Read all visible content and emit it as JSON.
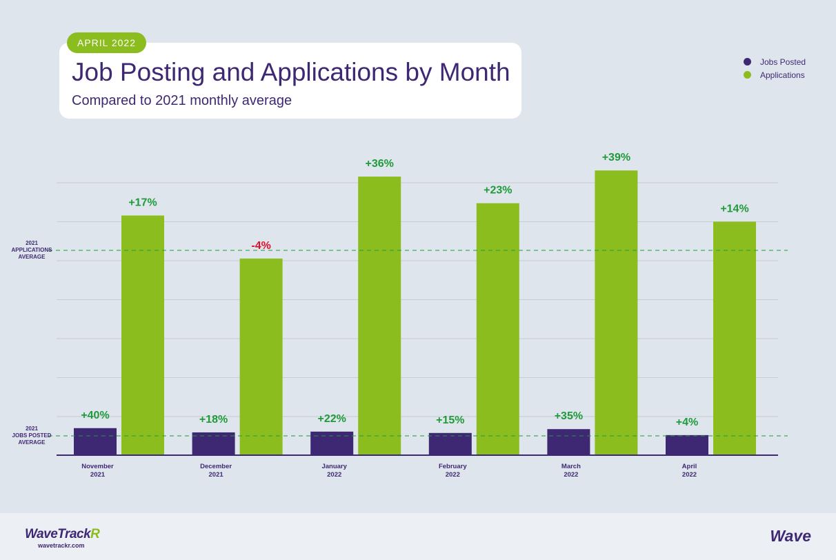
{
  "header": {
    "date_pill": "APRIL 2022",
    "title": "Job Posting and Applications by Month",
    "subtitle": "Compared to 2021 monthly average"
  },
  "legend": [
    {
      "label": "Jobs Posted",
      "color": "#3f2873"
    },
    {
      "label": "Applications",
      "color": "#8cbd1e"
    }
  ],
  "reference_lines": {
    "applications_average": [
      "2021",
      "APPLICATIONS",
      "AVERAGE"
    ],
    "jobs_posted_average": [
      "2021",
      "JOBS POSTED",
      "AVERAGE"
    ]
  },
  "chart_data": {
    "type": "bar",
    "categories": [
      [
        "November",
        "2021"
      ],
      [
        "December",
        "2021"
      ],
      [
        "January",
        "2022"
      ],
      [
        "February",
        "2022"
      ],
      [
        "March",
        "2022"
      ],
      [
        "April",
        "2022"
      ]
    ],
    "series": [
      {
        "name": "Jobs Posted",
        "color": "#3f2873",
        "labels": [
          "+40%",
          "+18%",
          "+22%",
          "+15%",
          "+35%",
          "+4%"
        ],
        "values": [
          40,
          18,
          22,
          15,
          35,
          4
        ],
        "baseline_average": 100
      },
      {
        "name": "Applications",
        "color": "#8cbd1e",
        "labels": [
          "+17%",
          "-4%",
          "+36%",
          "+23%",
          "+39%",
          "+14%"
        ],
        "values": [
          17,
          -4,
          36,
          23,
          39,
          14
        ],
        "baseline_average": 100
      }
    ],
    "positive_color": "#1f9a3a",
    "negative_color": "#e0102a",
    "gridlines": true
  },
  "footer": {
    "brand_main": "WaveTrack",
    "brand_accent": "R",
    "brand_url": "wavetrackr.com",
    "partner_logo": "Wave"
  }
}
